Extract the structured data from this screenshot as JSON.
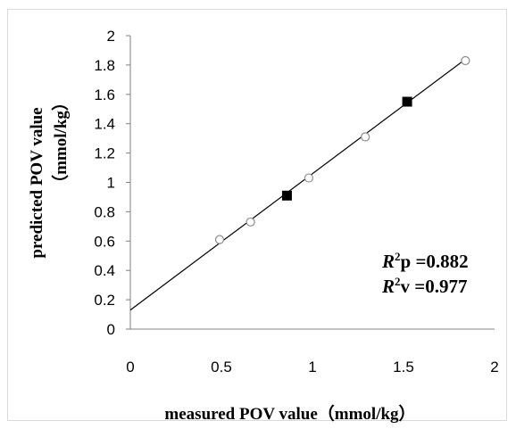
{
  "chart_data": {
    "type": "scatter",
    "title": "",
    "xlabel": "measured POV value（mmol/kg）",
    "ylabel_line1": "predicted POV value",
    "ylabel_line2": "（mmol/kg）",
    "xlim": [
      0,
      2
    ],
    "ylim": [
      0,
      2
    ],
    "x_ticks": [
      "0",
      "0.5",
      "1",
      "1.5",
      "2"
    ],
    "y_ticks": [
      "0",
      "0.2",
      "0.4",
      "0.6",
      "0.8",
      "1",
      "1.2",
      "1.4",
      "1.6",
      "1.8",
      "2"
    ],
    "grid": false,
    "series": [
      {
        "marker": "open-circle",
        "x": [
          0.49,
          0.66,
          0.98,
          1.29,
          1.84
        ],
        "y": [
          0.61,
          0.73,
          1.03,
          1.31,
          1.83
        ]
      },
      {
        "marker": "filled-square",
        "x": [
          0.86,
          1.52
        ],
        "y": [
          0.91,
          1.55
        ]
      }
    ],
    "fit_line": {
      "x": [
        0,
        1.84
      ],
      "y": [
        0.13,
        1.84
      ]
    },
    "annotations": [
      {
        "symbol": "R",
        "sup": "2",
        "text": "p =0.882"
      },
      {
        "symbol": "R",
        "sup": "2",
        "text": "v =0.977"
      }
    ],
    "colors": {
      "axis": "#808080",
      "line": "#000000",
      "circle_edge": "#8c8c8c",
      "square_fill": "#000000"
    }
  }
}
